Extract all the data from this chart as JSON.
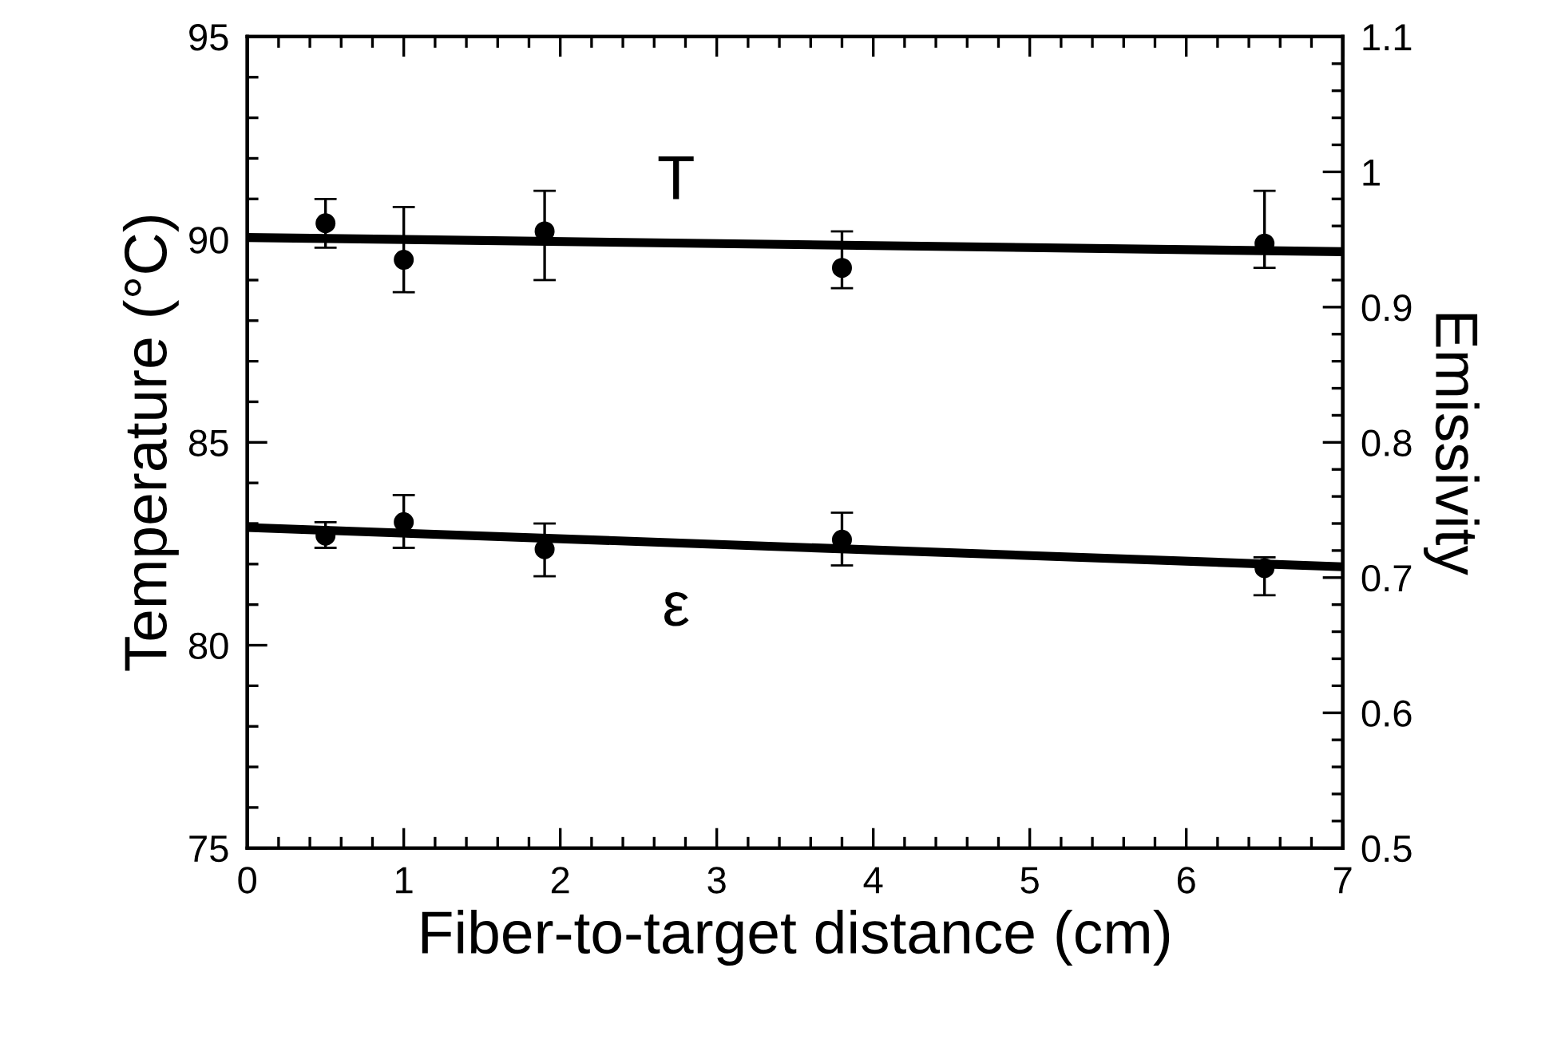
{
  "chart_data": {
    "type": "scatter",
    "xlabel": "Fiber-to-target distance (cm)",
    "ylabel": "Temperature (°C)",
    "y2label": "Emissivity",
    "xlim": [
      0,
      7
    ],
    "xticks": [
      0,
      1,
      2,
      3,
      4,
      5,
      6,
      7
    ],
    "ylim": [
      75,
      95
    ],
    "yticks": [
      75,
      80,
      85,
      90,
      95
    ],
    "y2lim": [
      0.5,
      1.1
    ],
    "y2ticks": [
      0.5,
      0.6,
      0.7,
      0.8,
      0.9,
      {
        "value": 1.0,
        "label": "1"
      },
      1.1
    ],
    "grid": false,
    "marker": "circle",
    "series": [
      {
        "name": "T",
        "color": "#000000",
        "x": [
          0.5,
          1.0,
          1.9,
          3.8,
          6.5
        ],
        "values": [
          90.4,
          89.5,
          90.2,
          89.3,
          89.9
        ],
        "errors": [
          [
            89.8,
            91.0
          ],
          [
            88.7,
            90.8
          ],
          [
            89.0,
            91.2
          ],
          [
            88.8,
            90.2
          ],
          [
            89.3,
            91.2
          ]
        ]
      },
      {
        "type": "line",
        "color": "#000000",
        "x": [
          0,
          7
        ],
        "values": [
          90.05,
          89.7
        ],
        "marker": "none"
      },
      {
        "name": "ε",
        "axis": "y2",
        "color": "#000000",
        "x": [
          0.5,
          1.0,
          1.9,
          3.8,
          6.5
        ],
        "values": [
          0.731,
          0.741,
          0.721,
          0.728,
          0.707
        ],
        "errors": [
          [
            0.722,
            0.741
          ],
          [
            0.722,
            0.761
          ],
          [
            0.701,
            0.74
          ],
          [
            0.709,
            0.748
          ],
          [
            0.687,
            0.715
          ]
        ]
      },
      {
        "type": "line",
        "axis": "y2",
        "color": "#000000",
        "x": [
          0,
          7
        ],
        "values": [
          0.737,
          0.708
        ],
        "marker": "none"
      }
    ]
  }
}
